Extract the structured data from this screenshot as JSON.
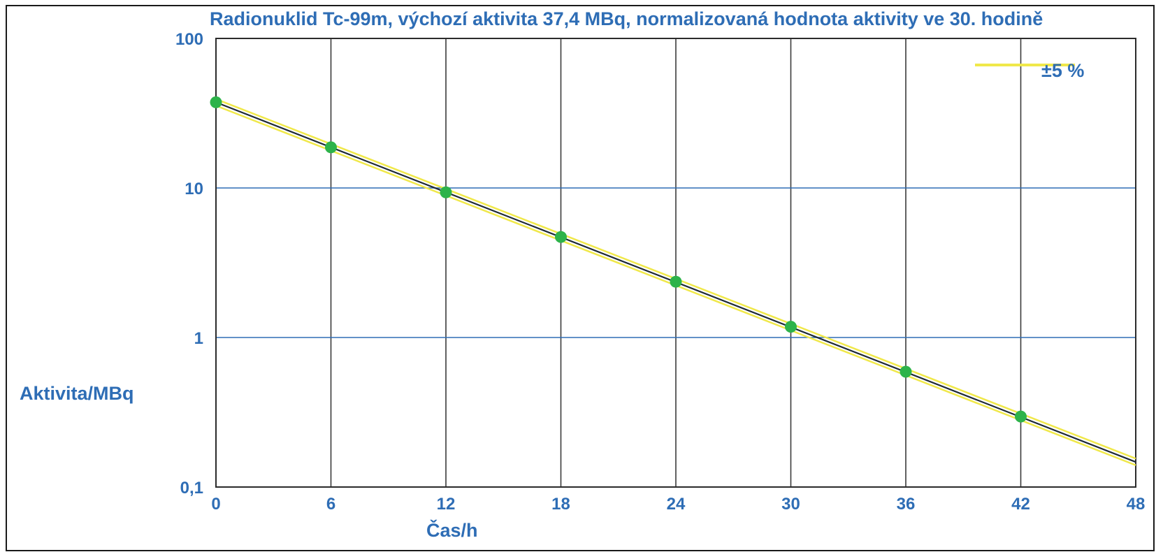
{
  "chart_data": {
    "type": "line",
    "title": "Radionuklid Tc-99m,  výchozí aktivita 37,4 MBq, normalizovaná hodnota aktivity ve 30. hodině",
    "xlabel": "Čas/h",
    "ylabel": "Aktivita/MBq",
    "xlim": [
      0,
      48
    ],
    "ylim": [
      0.1,
      100
    ],
    "y_scale": "log",
    "x_ticks": [
      "0",
      "6",
      "12",
      "18",
      "24",
      "30",
      "36",
      "42",
      "48"
    ],
    "x_tick_values": [
      0,
      6,
      12,
      18,
      24,
      30,
      36,
      42,
      48
    ],
    "y_ticks": [
      "0,1",
      "1",
      "10",
      "100"
    ],
    "y_tick_values": [
      0.1,
      1,
      10,
      100
    ],
    "grid": true,
    "legend": {
      "placement": "top-right",
      "label": "±5 %",
      "color": "#f0e84a"
    },
    "points": {
      "color": "#2db34a",
      "x": [
        0,
        6,
        12,
        18,
        24,
        30,
        36,
        42
      ],
      "y": [
        37.4,
        18.7,
        9.35,
        4.7,
        2.36,
        1.18,
        0.59,
        0.296
      ]
    },
    "fit_line": {
      "color": "#1f2a36",
      "x": [
        0,
        48
      ],
      "y": [
        37.4,
        0.147
      ]
    },
    "band": {
      "color": "#f0e84a",
      "upper": {
        "x": [
          0,
          48
        ],
        "y": [
          39.3,
          0.155
        ]
      },
      "lower": {
        "x": [
          0,
          48
        ],
        "y": [
          35.5,
          0.14
        ]
      }
    },
    "colors": {
      "text": "#2e6db5",
      "grid_h": "#2e6db5",
      "grid_v": "#3a3a3a"
    }
  }
}
